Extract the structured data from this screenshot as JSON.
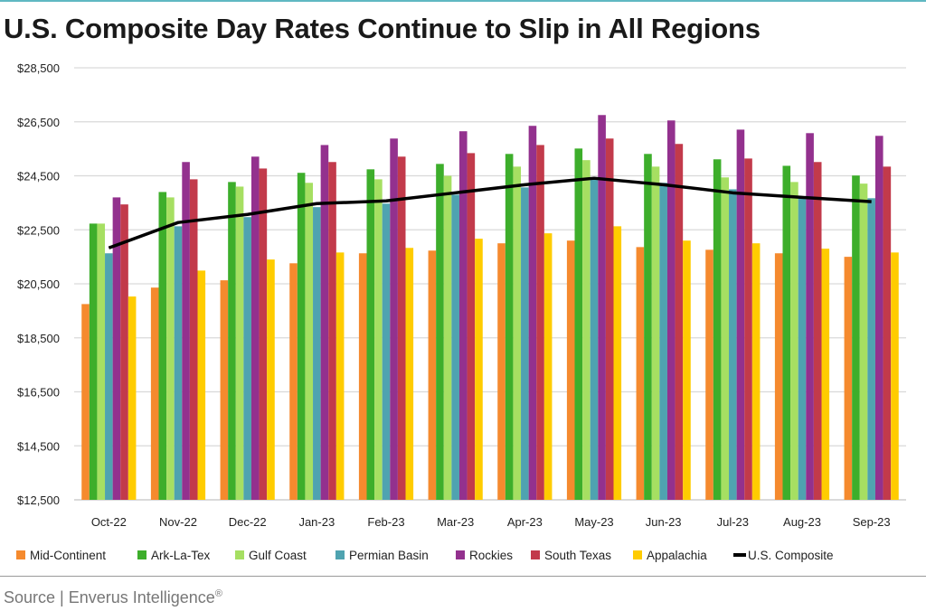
{
  "chart_data": {
    "type": "bar",
    "title": "U.S. Composite Day Rates Continue to Slip in All Regions",
    "xlabel": "",
    "ylabel": "",
    "ylim": [
      12500,
      28500
    ],
    "yticks": [
      "$12,500",
      "$14,500",
      "$16,500",
      "$18,500",
      "$20,500",
      "$22,500",
      "$24,500",
      "$26,500",
      "$28,500"
    ],
    "ytick_values": [
      12500,
      14500,
      16500,
      18500,
      20500,
      22500,
      24500,
      26500,
      28500
    ],
    "grid": true,
    "legend_position": "bottom",
    "categories": [
      "Oct-22",
      "Nov-22",
      "Dec-22",
      "Jan-23",
      "Feb-23",
      "Mar-23",
      "Apr-23",
      "May-23",
      "Jun-23",
      "Jul-23",
      "Aug-23",
      "Sep-23"
    ],
    "series": [
      {
        "name": "Mid-Continent",
        "type": "bar",
        "color": "#F58A2E",
        "values": [
          19750,
          20360,
          20630,
          21260,
          21630,
          21730,
          22000,
          22100,
          21860,
          21760,
          21630,
          21500
        ]
      },
      {
        "name": "Ark-La-Tex",
        "type": "bar",
        "color": "#3DAE2B",
        "values": [
          22730,
          23900,
          24270,
          24610,
          24740,
          24940,
          25310,
          25510,
          25310,
          25110,
          24870,
          24510
        ]
      },
      {
        "name": "Gulf Coast",
        "type": "bar",
        "color": "#A6DF62",
        "values": [
          22730,
          23700,
          24100,
          24240,
          24370,
          24500,
          24840,
          25080,
          24840,
          24440,
          24270,
          24210
        ]
      },
      {
        "name": "Permian Basin",
        "type": "bar",
        "color": "#4FA3B0",
        "values": [
          21630,
          22630,
          22970,
          23340,
          23470,
          23800,
          24070,
          24370,
          24240,
          24000,
          23740,
          23670
        ]
      },
      {
        "name": "Rockies",
        "type": "bar",
        "color": "#93318E",
        "values": [
          23700,
          25010,
          25210,
          25640,
          25880,
          26150,
          26350,
          26750,
          26550,
          26210,
          26080,
          25980
        ]
      },
      {
        "name": "South Texas",
        "type": "bar",
        "color": "#C23A4B",
        "values": [
          23440,
          24370,
          24770,
          25010,
          25210,
          25340,
          25640,
          25880,
          25680,
          25140,
          25010,
          24840
        ]
      },
      {
        "name": "Appalachia",
        "type": "bar",
        "color": "#FFCC00",
        "values": [
          20030,
          20990,
          21400,
          21660,
          21830,
          22170,
          22370,
          22630,
          22100,
          22000,
          21800,
          21660
        ]
      },
      {
        "name": "U.S. Composite",
        "type": "line",
        "color": "#000000",
        "values": [
          21830,
          22770,
          23070,
          23470,
          23570,
          23870,
          24170,
          24410,
          24170,
          23870,
          23700,
          23540
        ]
      }
    ]
  },
  "footer": {
    "source": "Source | Enverus Intelligence",
    "mark": "®"
  }
}
